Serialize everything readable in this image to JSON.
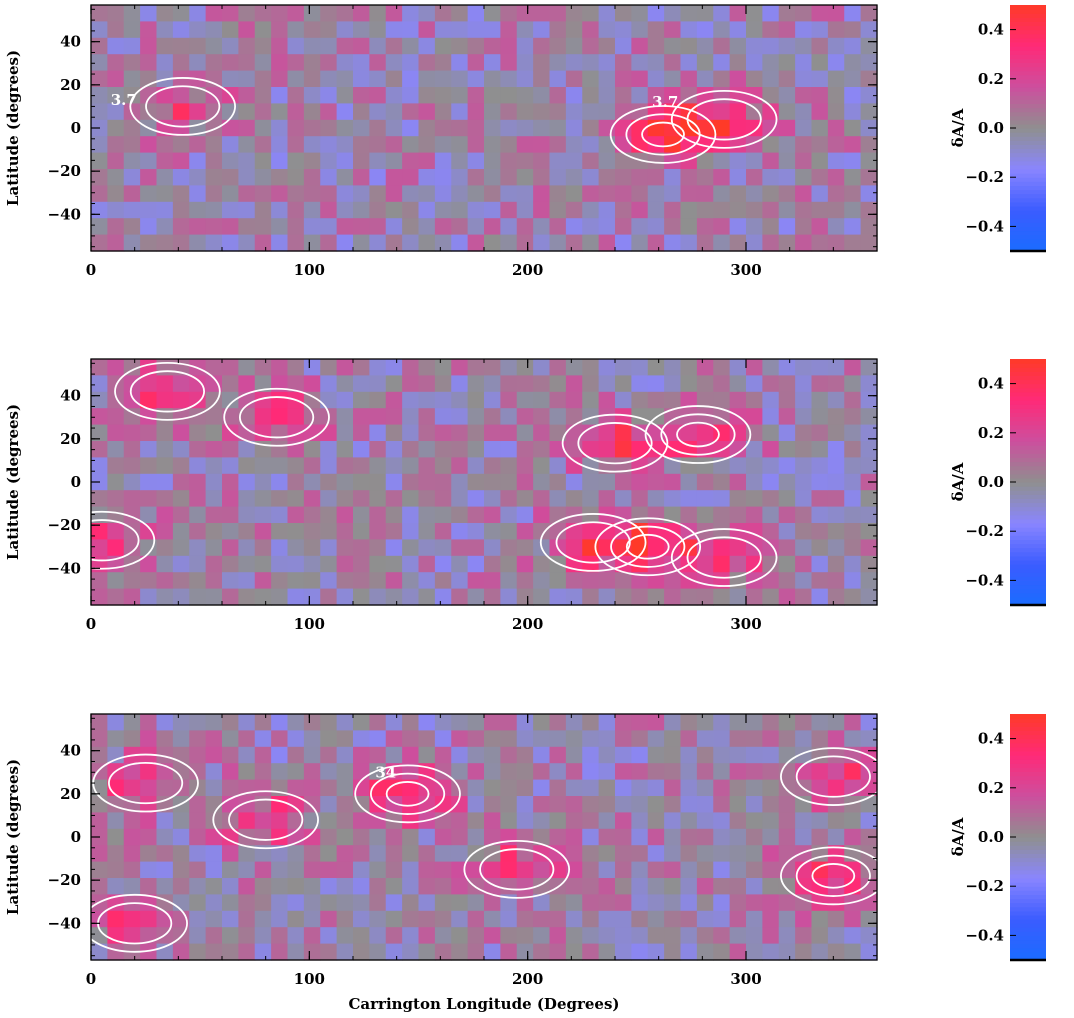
{
  "chart_data": [
    {
      "type": "heatmap",
      "panel": "top",
      "xlabel": "",
      "ylabel": "Latitude (degrees)",
      "xlim": [
        0,
        360
      ],
      "ylim": [
        -57,
        57
      ],
      "xticks": [
        "0",
        "100",
        "200",
        "300"
      ],
      "yticks": [
        "40",
        "20",
        "0",
        "−20",
        "−40"
      ],
      "colorbar_label": "δA/A",
      "colorbar_ticks": [
        "0.4",
        "0.2",
        "0.0",
        "−0.2",
        "−0.4"
      ],
      "colorbar_range": [
        -0.5,
        0.5
      ],
      "contour_labels": [
        {
          "text": "3.7",
          "lon": 15,
          "lat": 13
        },
        {
          "text": "3.7",
          "lon": 263,
          "lat": 12
        }
      ],
      "hotspots": [
        {
          "lon": 42,
          "lat": 10,
          "value": 0.25
        },
        {
          "lon": 262,
          "lat": -3,
          "value": 0.38
        },
        {
          "lon": 290,
          "lat": 4,
          "value": 0.33
        }
      ]
    },
    {
      "type": "heatmap",
      "panel": "middle",
      "xlabel": "",
      "ylabel": "Latitude (degrees)",
      "xlim": [
        0,
        360
      ],
      "ylim": [
        -57,
        57
      ],
      "xticks": [
        "0",
        "100",
        "200",
        "300"
      ],
      "yticks": [
        "40",
        "20",
        "0",
        "−20",
        "−40"
      ],
      "colorbar_label": "δA/A",
      "colorbar_ticks": [
        "0.4",
        "0.2",
        "0.0",
        "−0.2",
        "−0.4"
      ],
      "colorbar_range": [
        -0.5,
        0.5
      ],
      "contour_labels": [],
      "hotspots": [
        {
          "lon": 35,
          "lat": 42,
          "value": 0.3
        },
        {
          "lon": 85,
          "lat": 30,
          "value": 0.28
        },
        {
          "lon": 240,
          "lat": 18,
          "value": 0.3
        },
        {
          "lon": 278,
          "lat": 22,
          "value": 0.35
        },
        {
          "lon": 255,
          "lat": -30,
          "value": 0.35
        },
        {
          "lon": 230,
          "lat": -28,
          "value": 0.3
        },
        {
          "lon": 5,
          "lat": -27,
          "value": 0.32
        },
        {
          "lon": 290,
          "lat": -35,
          "value": 0.25
        }
      ]
    },
    {
      "type": "heatmap",
      "panel": "bottom",
      "xlabel": "Carrington Longitude (Degrees)",
      "ylabel": "Latitude (degrees)",
      "xlim": [
        0,
        360
      ],
      "ylim": [
        -57,
        57
      ],
      "xticks": [
        "0",
        "100",
        "200",
        "300"
      ],
      "yticks": [
        "40",
        "20",
        "0",
        "−20",
        "−40"
      ],
      "colorbar_label": "δA/A",
      "colorbar_ticks": [
        "0.4",
        "0.2",
        "0.0",
        "−0.2",
        "−0.4"
      ],
      "colorbar_range": [
        -0.5,
        0.5
      ],
      "contour_labels": [
        {
          "text": "34",
          "lon": 135,
          "lat": 30
        }
      ],
      "hotspots": [
        {
          "lon": 25,
          "lat": 25,
          "value": 0.3
        },
        {
          "lon": 80,
          "lat": 8,
          "value": 0.3
        },
        {
          "lon": 145,
          "lat": 20,
          "value": 0.4
        },
        {
          "lon": 195,
          "lat": -15,
          "value": 0.32
        },
        {
          "lon": 340,
          "lat": -18,
          "value": 0.35
        },
        {
          "lon": 340,
          "lat": 28,
          "value": 0.3
        },
        {
          "lon": 20,
          "lat": -40,
          "value": 0.25
        }
      ]
    }
  ],
  "colors": {
    "colormap": [
      "#1a6cff",
      "#3b5cff",
      "#8a85ff",
      "#8f8f8f",
      "#cc4f9e",
      "#ff2a78",
      "#ff3a28"
    ],
    "contour": "#ffffff",
    "background": "#ffffff"
  }
}
